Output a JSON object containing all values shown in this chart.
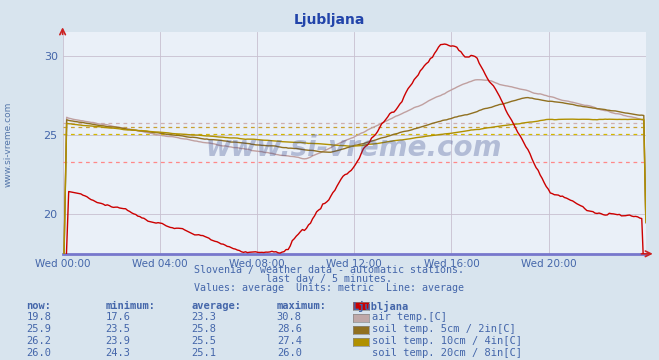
{
  "title": "Ljubljana",
  "subtitle1": "Slovenia / weather data - automatic stations.",
  "subtitle2": "last day / 5 minutes.",
  "subtitle3": "Values: average  Units: metric  Line: average",
  "bg_color": "#d8e4ee",
  "plot_bg_color": "#eaf0f8",
  "grid_color_v": "#c8c0d0",
  "grid_color_h": "#c8c0d0",
  "x_ticks": [
    0,
    4,
    8,
    12,
    16,
    20
  ],
  "x_tick_labels": [
    "Wed 00:00",
    "Wed 04:00",
    "Wed 08:00",
    "Wed 12:00",
    "Wed 16:00",
    "Wed 20:00"
  ],
  "xlim": [
    0,
    24
  ],
  "ylim": [
    17.5,
    31.5
  ],
  "yticks": [
    20,
    25,
    30
  ],
  "avg_values": [
    23.3,
    25.8,
    25.5,
    25.1
  ],
  "avg_line_colors": [
    "#ff8888",
    "#d0b0b0",
    "#c8a030",
    "#d4b800"
  ],
  "line_colors": [
    "#cc0000",
    "#c0a0a0",
    "#907020",
    "#b09000"
  ],
  "watermark": "www.si-vreme.com",
  "watermark_color": "#334488",
  "watermark_alpha": 0.3,
  "text_color": "#4466aa",
  "title_color": "#2244aa",
  "now_values": [
    19.8,
    25.9,
    26.2,
    26.0
  ],
  "min_values": [
    17.6,
    23.5,
    23.9,
    24.3
  ],
  "max_values": [
    30.8,
    28.6,
    27.4,
    26.0
  ],
  "series_colors": [
    "#cc0000",
    "#c0a8a8",
    "#907020",
    "#b09000"
  ],
  "series_labels": [
    "air temp.[C]",
    "soil temp. 5cm / 2in[C]",
    "soil temp. 10cm / 4in[C]",
    "soil temp. 20cm / 8in[C]"
  ]
}
